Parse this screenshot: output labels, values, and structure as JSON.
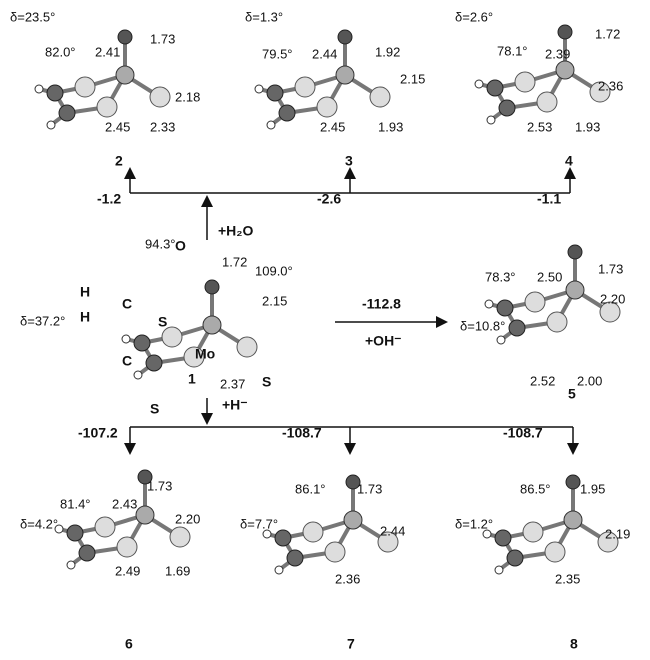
{
  "structures": [
    {
      "id": "2",
      "delta": "δ=23.5°",
      "labels": [
        "82.0°",
        "2.41",
        "1.73",
        "2.18",
        "2.45",
        "2.33"
      ]
    },
    {
      "id": "3",
      "delta": "δ=1.3°",
      "labels": [
        "79.5°",
        "2.44",
        "1.92",
        "2.15",
        "2.45",
        "1.93"
      ]
    },
    {
      "id": "4",
      "delta": "δ=2.6°",
      "labels": [
        "78.1°",
        "2.39",
        "1.72",
        "2.36",
        "2.53",
        "1.93"
      ]
    },
    {
      "id": "1",
      "delta": "δ=37.2°",
      "labels": [
        "94.3°",
        "1.72",
        "109.0°",
        "2.15",
        "2.37"
      ],
      "atoms": [
        "O",
        "H",
        "H",
        "C",
        "C",
        "S",
        "S",
        "Mo",
        "S"
      ]
    },
    {
      "id": "5",
      "delta": "δ=10.8°",
      "labels": [
        "78.3°",
        "2.50",
        "1.73",
        "2.20",
        "2.52",
        "2.00"
      ]
    },
    {
      "id": "6",
      "delta": "δ=4.2°",
      "labels": [
        "81.4°",
        "2.43",
        "1.73",
        "2.20",
        "2.49",
        "1.69"
      ]
    },
    {
      "id": "7",
      "delta": "δ=7.7°",
      "labels": [
        "86.1°",
        "1.73",
        "2.44",
        "2.36"
      ]
    },
    {
      "id": "8",
      "delta": "δ=1.2°",
      "labels": [
        "86.5°",
        "1.95",
        "2.19",
        "2.35"
      ]
    }
  ],
  "reactions": {
    "water": {
      "reagent": "+H₂O",
      "energies": [
        "-1.2",
        "-2.6",
        "-1.1"
      ]
    },
    "hydroxide": {
      "reagent": "+OH⁻",
      "energy": "-112.8"
    },
    "hydride": {
      "reagent": "+H⁻",
      "energies": [
        "-107.2",
        "-108.7",
        "-108.7"
      ]
    }
  }
}
